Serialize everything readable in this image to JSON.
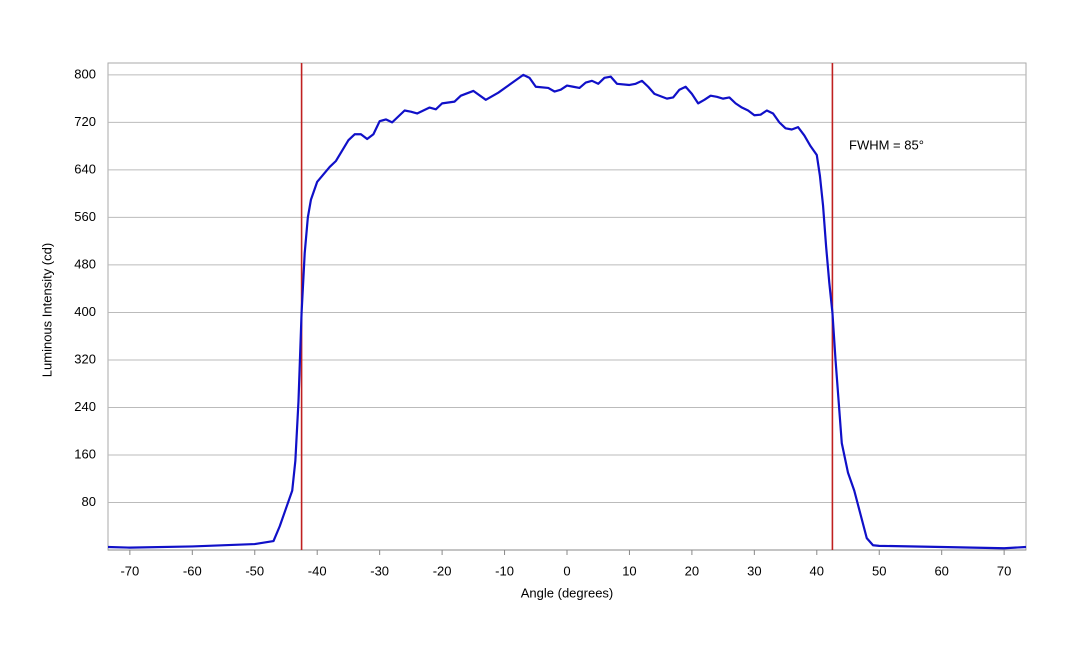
{
  "chart_data": {
    "type": "line",
    "x_label": "Angle (degrees)",
    "y_label": "Luminous Intensity (cd)",
    "annotation": "FWHM = 85°",
    "x": [
      -73.5,
      -70,
      -60,
      -50,
      -47,
      -46,
      -45,
      -44,
      -43.5,
      -43,
      -42.5,
      -42,
      -41.5,
      -41,
      -40,
      -38,
      -37,
      -35,
      -34,
      -33,
      -32,
      -31,
      -30,
      -29,
      -28,
      -26,
      -25,
      -24,
      -22,
      -21,
      -20,
      -18,
      -17,
      -15,
      -13,
      -11,
      -9,
      -7,
      -6,
      -5,
      -3,
      -2,
      -1,
      0,
      1,
      2,
      3,
      4,
      5,
      6,
      7,
      8,
      10,
      11,
      12,
      13,
      14,
      16,
      17,
      18,
      19,
      20,
      21,
      22,
      23,
      24,
      25,
      26,
      27,
      28,
      29,
      30,
      31,
      32,
      33,
      34,
      35,
      36,
      37,
      38,
      39,
      40,
      40.5,
      41,
      41.5,
      42,
      42.5,
      43,
      43.5,
      44,
      45,
      46,
      47,
      48,
      49,
      50,
      60,
      70,
      73.5
    ],
    "series": [
      {
        "name": "Luminous Intensity",
        "color": "#1010c8",
        "values": [
          5,
          4,
          6,
          10,
          15,
          40,
          70,
          100,
          150,
          250,
          400,
          500,
          560,
          590,
          620,
          645,
          655,
          690,
          700,
          700,
          692,
          700,
          722,
          725,
          720,
          740,
          738,
          735,
          745,
          742,
          752,
          755,
          765,
          773,
          758,
          770,
          785,
          800,
          795,
          780,
          778,
          772,
          775,
          782,
          780,
          778,
          787,
          790,
          785,
          795,
          797,
          785,
          783,
          785,
          790,
          780,
          768,
          760,
          762,
          775,
          780,
          768,
          752,
          758,
          765,
          763,
          760,
          762,
          752,
          745,
          740,
          732,
          733,
          740,
          735,
          720,
          710,
          708,
          712,
          698,
          680,
          665,
          630,
          580,
          510,
          450,
          400,
          320,
          250,
          180,
          130,
          100,
          60,
          20,
          8,
          7,
          5,
          3,
          5
        ]
      }
    ],
    "vlines": [
      -42.5,
      42.5
    ],
    "vline_color": "#c02020",
    "xlim": [
      -73.5,
      73.5
    ],
    "xticks": [
      -70,
      -60,
      -50,
      -40,
      -30,
      -20,
      -10,
      0,
      10,
      20,
      30,
      40,
      50,
      60,
      70
    ],
    "ylim": [
      0,
      820
    ],
    "yticks": [
      80,
      160,
      240,
      320,
      400,
      480,
      560,
      640,
      720,
      800
    ],
    "grid": true
  }
}
